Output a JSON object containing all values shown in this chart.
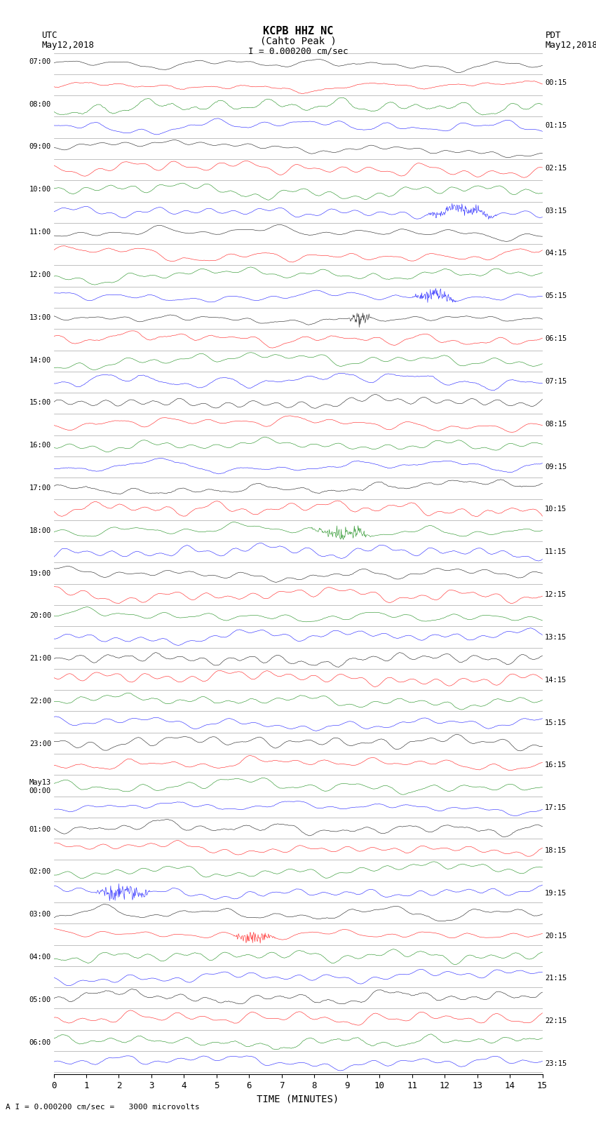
{
  "title_line1": "KCPB HHZ NC",
  "title_line2": "(Cahto Peak )",
  "title_line3": "I = 0.000200 cm/sec",
  "utc_label": "UTC",
  "utc_date": "May12,2018",
  "pdt_label": "PDT",
  "pdt_date": "May12,2018",
  "xlabel": "TIME (MINUTES)",
  "footer": "A I = 0.000200 cm/sec =   3000 microvolts",
  "left_times": [
    "07:00",
    "08:00",
    "09:00",
    "10:00",
    "11:00",
    "12:00",
    "13:00",
    "14:00",
    "15:00",
    "16:00",
    "17:00",
    "18:00",
    "19:00",
    "20:00",
    "21:00",
    "22:00",
    "23:00",
    "May13\n00:00",
    "01:00",
    "02:00",
    "03:00",
    "04:00",
    "05:00",
    "06:00"
  ],
  "right_times": [
    "00:15",
    "01:15",
    "02:15",
    "03:15",
    "04:15",
    "05:15",
    "06:15",
    "07:15",
    "08:15",
    "09:15",
    "10:15",
    "11:15",
    "12:15",
    "13:15",
    "14:15",
    "15:15",
    "16:15",
    "17:15",
    "18:15",
    "19:15",
    "20:15",
    "21:15",
    "22:15",
    "23:15"
  ],
  "n_rows": 48,
  "n_cols": 900,
  "colors_cycle": [
    "black",
    "red",
    "green",
    "blue"
  ],
  "bg_color": "white",
  "trace_amplitude": 0.42,
  "xmin": 0,
  "xmax": 15,
  "xticks": [
    0,
    1,
    2,
    3,
    4,
    5,
    6,
    7,
    8,
    9,
    10,
    11,
    12,
    13,
    14,
    15
  ],
  "figsize": [
    8.5,
    16.13
  ],
  "dpi": 100
}
